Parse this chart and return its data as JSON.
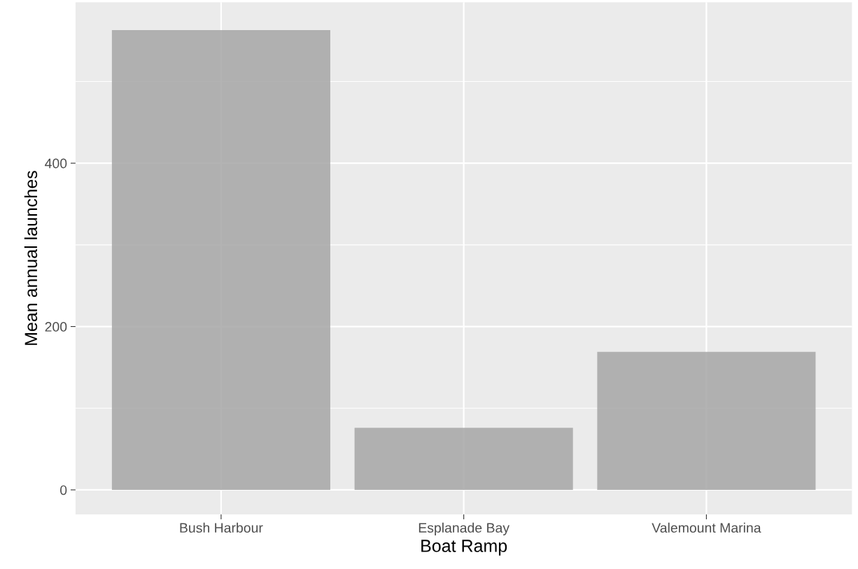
{
  "chart_data": {
    "type": "bar",
    "xlabel": "Boat Ramp",
    "ylabel": "Mean annual launches",
    "categories": [
      "Bush Harbour",
      "Esplanade Bay",
      "Valemount Marina"
    ],
    "values": [
      563,
      76,
      169
    ],
    "color": "#a6a6a6",
    "ylim": [
      -30,
      597
    ],
    "yticks": [
      0,
      200,
      400
    ],
    "grid": true,
    "legend": false
  }
}
